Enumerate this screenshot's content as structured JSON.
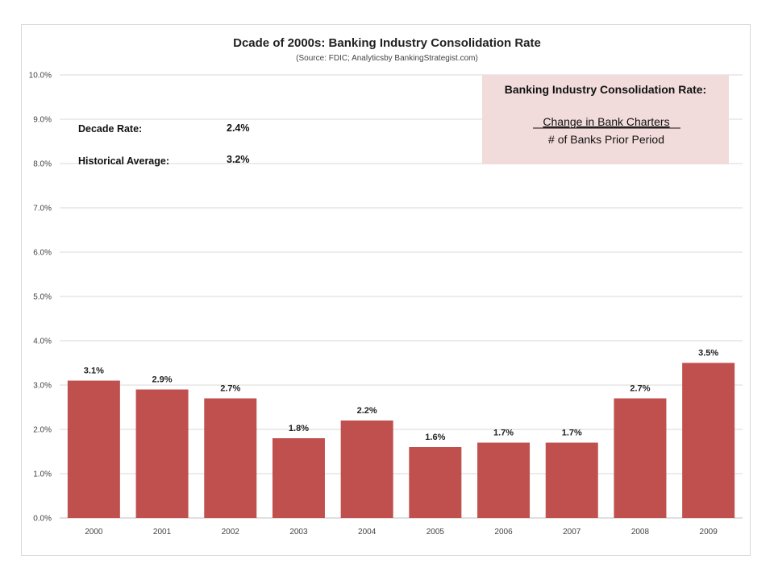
{
  "chart_data": {
    "type": "bar",
    "title": "Dcade of 2000s: Banking Industry Consolidation Rate",
    "subtitle": "(Source: FDIC; Analyticsby BankingStrategist.com)",
    "categories": [
      "2000",
      "2001",
      "2002",
      "2003",
      "2004",
      "2005",
      "2006",
      "2007",
      "2008",
      "2009"
    ],
    "values": [
      3.1,
      2.9,
      2.7,
      1.8,
      2.2,
      1.6,
      1.7,
      1.7,
      2.7,
      3.5
    ],
    "data_labels": [
      "3.1%",
      "2.9%",
      "2.7%",
      "1.8%",
      "2.2%",
      "1.6%",
      "1.7%",
      "1.7%",
      "2.7%",
      "3.5%"
    ],
    "ylim": [
      0,
      10
    ],
    "yticks": [
      0,
      1,
      2,
      3,
      4,
      5,
      6,
      7,
      8,
      9,
      10
    ],
    "ytick_labels": [
      "0.0%",
      "1.0%",
      "2.0%",
      "3.0%",
      "4.0%",
      "5.0%",
      "6.0%",
      "7.0%",
      "8.0%",
      "9.0%",
      "10.0%"
    ],
    "xlabel": "",
    "ylabel": "",
    "grid": true,
    "bar_color": "#c0504d",
    "annotations": {
      "decade_rate_label": "Decade Rate:",
      "decade_rate_value": "2.4%",
      "historical_average_label": "Historical Average:",
      "historical_average_value": "3.2%"
    },
    "formula_box": {
      "title": "Banking Industry Consolidation Rate:",
      "numerator": "Change in Bank Charters",
      "denominator": "# of Banks Prior Period",
      "background": "#f2dcdb"
    }
  }
}
